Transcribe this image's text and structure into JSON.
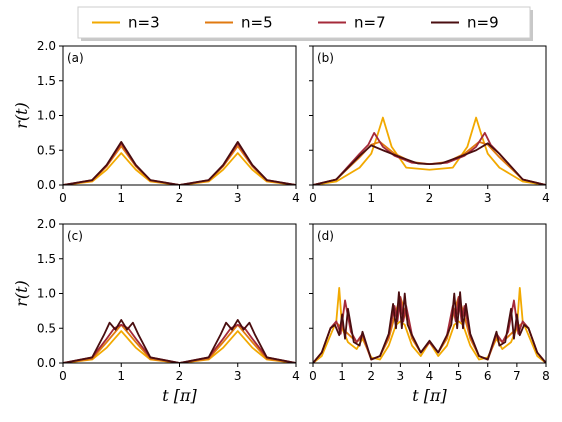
{
  "chart_data": {
    "type": "line",
    "legend": {
      "placement": "top-center",
      "entries": [
        {
          "label": "n=3",
          "color": "#F2A900"
        },
        {
          "label": "n=5",
          "color": "#E07A10"
        },
        {
          "label": "n=7",
          "color": "#A52A3A"
        },
        {
          "label": "n=9",
          "color": "#4A0E10"
        }
      ]
    },
    "ylabel": "r(t)",
    "xlabel_unit": "t [π]",
    "grid": false,
    "panels": [
      {
        "label": "(a)",
        "xlim": [
          0,
          4
        ],
        "ylim": [
          0,
          2
        ],
        "xticks": [
          "0",
          "1",
          "2",
          "3",
          "4"
        ],
        "yticks": [
          "0.0",
          "0.5",
          "1.0",
          "1.5",
          "2.0"
        ],
        "show_ylabel": true,
        "show_xlabel": false,
        "series": [
          {
            "name": "n=3",
            "x": [
              0,
              0.5,
              0.75,
              1,
              1.25,
              1.5,
              2,
              2.5,
              2.75,
              3,
              3.25,
              3.5,
              4
            ],
            "y": [
              0,
              0.05,
              0.22,
              0.46,
              0.22,
              0.05,
              0,
              0.05,
              0.22,
              0.46,
              0.22,
              0.05,
              0
            ]
          },
          {
            "name": "n=5",
            "x": [
              0,
              0.5,
              0.75,
              1,
              1.25,
              1.5,
              2,
              2.5,
              2.75,
              3,
              3.25,
              3.5,
              4
            ],
            "y": [
              0,
              0.06,
              0.27,
              0.56,
              0.27,
              0.06,
              0,
              0.06,
              0.27,
              0.56,
              0.27,
              0.06,
              0
            ]
          },
          {
            "name": "n=7",
            "x": [
              0,
              0.5,
              0.75,
              1,
              1.25,
              1.5,
              2,
              2.5,
              2.75,
              3,
              3.25,
              3.5,
              4
            ],
            "y": [
              0,
              0.07,
              0.28,
              0.6,
              0.28,
              0.07,
              0,
              0.07,
              0.28,
              0.6,
              0.28,
              0.07,
              0
            ]
          },
          {
            "name": "n=9",
            "x": [
              0,
              0.5,
              0.75,
              1,
              1.25,
              1.5,
              2,
              2.5,
              2.75,
              3,
              3.25,
              3.5,
              4
            ],
            "y": [
              0,
              0.07,
              0.29,
              0.62,
              0.29,
              0.07,
              0,
              0.07,
              0.29,
              0.62,
              0.29,
              0.07,
              0
            ]
          }
        ]
      },
      {
        "label": "(b)",
        "xlim": [
          0,
          4
        ],
        "ylim": [
          0,
          2
        ],
        "xticks": [
          "0",
          "1",
          "2",
          "3",
          "4"
        ],
        "yticks": [
          "0.0",
          "0.5",
          "1.0",
          "1.5",
          "2.0"
        ],
        "show_ylabel": false,
        "show_xlabel": false,
        "series": [
          {
            "name": "n=3",
            "x": [
              0,
              0.4,
              0.8,
              1.0,
              1.1,
              1.2,
              1.35,
              1.6,
              2.0,
              2.4,
              2.65,
              2.8,
              2.9,
              3.0,
              3.2,
              3.6,
              4.0
            ],
            "y": [
              0,
              0.05,
              0.25,
              0.45,
              0.7,
              0.97,
              0.55,
              0.25,
              0.22,
              0.25,
              0.55,
              0.97,
              0.7,
              0.45,
              0.25,
              0.05,
              0
            ]
          },
          {
            "name": "n=5",
            "x": [
              0,
              0.4,
              0.8,
              1.0,
              1.15,
              1.4,
              1.7,
              2.0,
              2.3,
              2.6,
              2.85,
              3.0,
              3.2,
              3.6,
              4.0
            ],
            "y": [
              0,
              0.08,
              0.4,
              0.58,
              0.62,
              0.45,
              0.33,
              0.3,
              0.33,
              0.45,
              0.62,
              0.58,
              0.4,
              0.08,
              0
            ]
          },
          {
            "name": "n=7",
            "x": [
              0,
              0.4,
              0.8,
              0.95,
              1.05,
              1.2,
              1.4,
              1.7,
              2.0,
              2.3,
              2.6,
              2.8,
              2.95,
              3.05,
              3.2,
              3.6,
              4.0
            ],
            "y": [
              0,
              0.08,
              0.45,
              0.58,
              0.75,
              0.55,
              0.42,
              0.32,
              0.3,
              0.32,
              0.42,
              0.55,
              0.75,
              0.58,
              0.45,
              0.08,
              0
            ]
          },
          {
            "name": "n=9",
            "x": [
              0,
              0.4,
              0.8,
              1.0,
              1.2,
              1.5,
              1.8,
              2.0,
              2.2,
              2.5,
              2.8,
              3.0,
              3.2,
              3.6,
              4.0
            ],
            "y": [
              0,
              0.08,
              0.42,
              0.57,
              0.5,
              0.4,
              0.31,
              0.3,
              0.31,
              0.4,
              0.5,
              0.6,
              0.45,
              0.08,
              0
            ]
          }
        ]
      },
      {
        "label": "(c)",
        "xlim": [
          0,
          4
        ],
        "ylim": [
          0,
          2
        ],
        "xticks": [
          "0",
          "1",
          "2",
          "3",
          "4"
        ],
        "yticks": [
          "0.0",
          "0.5",
          "1.0",
          "1.5",
          "2.0"
        ],
        "show_ylabel": true,
        "show_xlabel": true,
        "series": [
          {
            "name": "n=3",
            "x": [
              0,
              0.5,
              0.75,
              1,
              1.25,
              1.5,
              2,
              2.5,
              2.75,
              3,
              3.25,
              3.5,
              4
            ],
            "y": [
              0,
              0.05,
              0.22,
              0.46,
              0.22,
              0.05,
              0,
              0.05,
              0.22,
              0.46,
              0.22,
              0.05,
              0
            ]
          },
          {
            "name": "n=5",
            "x": [
              0,
              0.5,
              0.75,
              1,
              1.25,
              1.5,
              2,
              2.5,
              2.75,
              3,
              3.25,
              3.5,
              4
            ],
            "y": [
              0,
              0.06,
              0.3,
              0.55,
              0.3,
              0.06,
              0,
              0.06,
              0.3,
              0.55,
              0.3,
              0.06,
              0
            ]
          },
          {
            "name": "n=7",
            "x": [
              0,
              0.5,
              0.75,
              0.88,
              1,
              1.12,
              1.25,
              1.5,
              2,
              2.5,
              2.75,
              2.88,
              3,
              3.12,
              3.25,
              3.5,
              4
            ],
            "y": [
              0,
              0.08,
              0.35,
              0.5,
              0.55,
              0.5,
              0.35,
              0.08,
              0,
              0.08,
              0.35,
              0.5,
              0.55,
              0.5,
              0.35,
              0.08,
              0
            ]
          },
          {
            "name": "n=9",
            "x": [
              0,
              0.5,
              0.7,
              0.8,
              0.9,
              1,
              1.1,
              1.2,
              1.3,
              1.5,
              2,
              2.5,
              2.7,
              2.8,
              2.9,
              3,
              3.1,
              3.2,
              3.3,
              3.5,
              4
            ],
            "y": [
              0,
              0.08,
              0.4,
              0.58,
              0.48,
              0.62,
              0.48,
              0.58,
              0.4,
              0.08,
              0,
              0.08,
              0.4,
              0.58,
              0.48,
              0.62,
              0.48,
              0.58,
              0.4,
              0.08,
              0
            ]
          }
        ]
      },
      {
        "label": "(d)",
        "xlim": [
          0,
          8
        ],
        "ylim": [
          0,
          2
        ],
        "xticks": [
          "0",
          "1",
          "2",
          "3",
          "4",
          "5",
          "6",
          "7",
          "8"
        ],
        "yticks": [
          "0.0",
          "0.5",
          "1.0",
          "1.5",
          "2.0"
        ],
        "show_ylabel": false,
        "show_xlabel": true,
        "series": [
          {
            "name": "n=3",
            "x": [
              0,
              0.3,
              0.6,
              0.8,
              0.9,
              1.0,
              1.2,
              1.5,
              1.7,
              2.0,
              2.3,
              2.6,
              2.85,
              3.0,
              3.15,
              3.4,
              3.7,
              4.0,
              4.3,
              4.6,
              4.85,
              5.0,
              5.15,
              5.4,
              5.7,
              6.0,
              6.3,
              6.5,
              6.8,
              7.0,
              7.1,
              7.2,
              7.4,
              7.7,
              8.0
            ],
            "y": [
              0,
              0.1,
              0.4,
              0.6,
              1.08,
              0.5,
              0.3,
              0.2,
              0.35,
              0.08,
              0.05,
              0.25,
              0.55,
              0.6,
              0.55,
              0.25,
              0.1,
              0.3,
              0.1,
              0.25,
              0.55,
              0.6,
              0.55,
              0.25,
              0.05,
              0.08,
              0.35,
              0.2,
              0.3,
              0.5,
              1.08,
              0.6,
              0.4,
              0.1,
              0
            ]
          },
          {
            "name": "n=5",
            "x": [
              0,
              0.3,
              0.6,
              0.8,
              1.0,
              1.2,
              1.5,
              1.7,
              2.0,
              2.3,
              2.6,
              2.85,
              3.0,
              3.15,
              3.4,
              3.7,
              4.0,
              4.3,
              4.6,
              4.85,
              5.0,
              5.15,
              5.4,
              5.7,
              6.0,
              6.3,
              6.5,
              6.8,
              7.0,
              7.2,
              7.4,
              7.7,
              8.0
            ],
            "y": [
              0,
              0.15,
              0.5,
              0.58,
              0.5,
              0.42,
              0.3,
              0.38,
              0.05,
              0.1,
              0.35,
              0.75,
              0.95,
              0.75,
              0.35,
              0.15,
              0.3,
              0.15,
              0.35,
              0.75,
              0.95,
              0.75,
              0.35,
              0.1,
              0.05,
              0.38,
              0.3,
              0.42,
              0.5,
              0.58,
              0.5,
              0.15,
              0
            ]
          },
          {
            "name": "n=7",
            "x": [
              0,
              0.3,
              0.6,
              0.8,
              0.95,
              1.1,
              1.3,
              1.5,
              1.7,
              2.0,
              2.3,
              2.6,
              2.8,
              2.9,
              3.0,
              3.1,
              3.2,
              3.4,
              3.7,
              4.0,
              4.3,
              4.6,
              4.8,
              4.9,
              5.0,
              5.1,
              5.2,
              5.4,
              5.7,
              6.0,
              6.3,
              6.5,
              6.7,
              6.9,
              7.05,
              7.2,
              7.4,
              7.7,
              8.0
            ],
            "y": [
              0,
              0.15,
              0.5,
              0.6,
              0.42,
              0.9,
              0.45,
              0.3,
              0.42,
              0.05,
              0.1,
              0.4,
              0.82,
              0.6,
              0.95,
              0.6,
              0.82,
              0.4,
              0.15,
              0.3,
              0.15,
              0.4,
              0.82,
              0.6,
              0.95,
              0.6,
              0.82,
              0.4,
              0.1,
              0.05,
              0.42,
              0.3,
              0.45,
              0.9,
              0.42,
              0.6,
              0.5,
              0.15,
              0
            ]
          },
          {
            "name": "n=9",
            "x": [
              0,
              0.3,
              0.6,
              0.75,
              0.9,
              1.0,
              1.1,
              1.2,
              1.4,
              1.6,
              1.7,
              2.0,
              2.3,
              2.6,
              2.75,
              2.85,
              2.95,
              3.05,
              3.15,
              3.25,
              3.4,
              3.7,
              4.0,
              4.3,
              4.6,
              4.75,
              4.85,
              4.95,
              5.05,
              5.15,
              5.25,
              5.4,
              5.7,
              6.0,
              6.3,
              6.4,
              6.6,
              6.8,
              6.9,
              7.0,
              7.1,
              7.25,
              7.4,
              7.7,
              8.0
            ],
            "y": [
              0,
              0.15,
              0.5,
              0.55,
              0.4,
              0.7,
              0.35,
              0.78,
              0.3,
              0.25,
              0.45,
              0.05,
              0.1,
              0.42,
              0.85,
              0.5,
              1.02,
              0.5,
              1.0,
              0.55,
              0.4,
              0.15,
              0.32,
              0.15,
              0.4,
              0.55,
              1.0,
              0.5,
              1.02,
              0.5,
              0.85,
              0.42,
              0.1,
              0.05,
              0.45,
              0.25,
              0.3,
              0.78,
              0.35,
              0.7,
              0.4,
              0.55,
              0.5,
              0.15,
              0
            ]
          }
        ]
      }
    ]
  }
}
